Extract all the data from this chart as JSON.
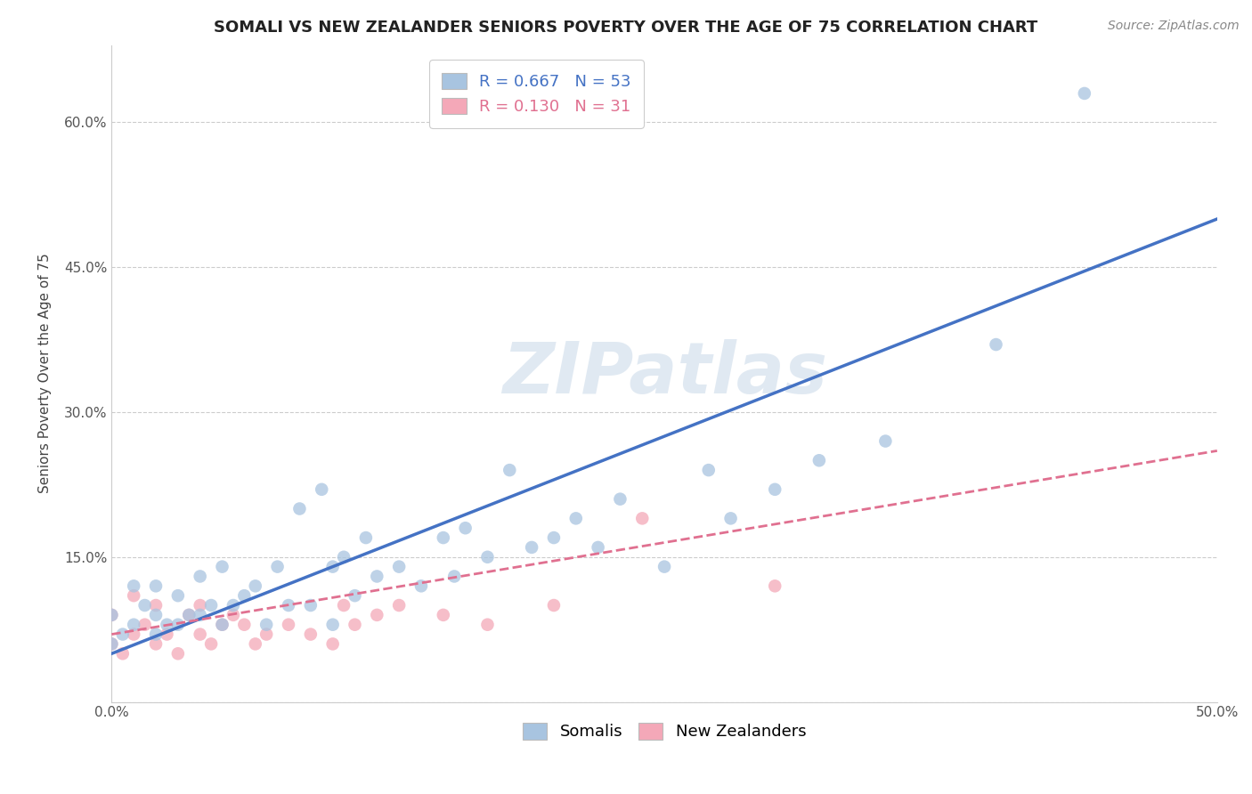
{
  "title": "SOMALI VS NEW ZEALANDER SENIORS POVERTY OVER THE AGE OF 75 CORRELATION CHART",
  "source": "Source: ZipAtlas.com",
  "ylabel": "Seniors Poverty Over the Age of 75",
  "xlim": [
    0.0,
    0.5
  ],
  "ylim": [
    0.0,
    0.68
  ],
  "yticks": [
    0.0,
    0.15,
    0.3,
    0.45,
    0.6
  ],
  "ytick_labels": [
    "",
    "15.0%",
    "30.0%",
    "45.0%",
    "60.0%"
  ],
  "xticks": [
    0.0,
    0.1,
    0.2,
    0.3,
    0.4,
    0.5
  ],
  "xtick_labels": [
    "0.0%",
    "",
    "",
    "",
    "",
    "50.0%"
  ],
  "somali_R": 0.667,
  "somali_N": 53,
  "nz_R": 0.13,
  "nz_N": 31,
  "somali_color": "#a8c4e0",
  "nz_color": "#f4a8b8",
  "somali_line_color": "#4472c4",
  "nz_line_color": "#e07090",
  "watermark": "ZIPatlas",
  "somali_scatter_x": [
    0.0,
    0.0,
    0.005,
    0.01,
    0.01,
    0.015,
    0.02,
    0.02,
    0.02,
    0.025,
    0.03,
    0.03,
    0.035,
    0.04,
    0.04,
    0.045,
    0.05,
    0.05,
    0.055,
    0.06,
    0.065,
    0.07,
    0.075,
    0.08,
    0.085,
    0.09,
    0.095,
    0.1,
    0.1,
    0.105,
    0.11,
    0.115,
    0.12,
    0.13,
    0.14,
    0.15,
    0.155,
    0.16,
    0.17,
    0.18,
    0.19,
    0.2,
    0.21,
    0.22,
    0.23,
    0.25,
    0.27,
    0.28,
    0.3,
    0.32,
    0.35,
    0.4,
    0.44
  ],
  "somali_scatter_y": [
    0.06,
    0.09,
    0.07,
    0.08,
    0.12,
    0.1,
    0.07,
    0.09,
    0.12,
    0.08,
    0.08,
    0.11,
    0.09,
    0.09,
    0.13,
    0.1,
    0.08,
    0.14,
    0.1,
    0.11,
    0.12,
    0.08,
    0.14,
    0.1,
    0.2,
    0.1,
    0.22,
    0.08,
    0.14,
    0.15,
    0.11,
    0.17,
    0.13,
    0.14,
    0.12,
    0.17,
    0.13,
    0.18,
    0.15,
    0.24,
    0.16,
    0.17,
    0.19,
    0.16,
    0.21,
    0.14,
    0.24,
    0.19,
    0.22,
    0.25,
    0.27,
    0.37,
    0.63
  ],
  "nz_scatter_x": [
    0.0,
    0.0,
    0.005,
    0.01,
    0.01,
    0.015,
    0.02,
    0.02,
    0.025,
    0.03,
    0.035,
    0.04,
    0.04,
    0.045,
    0.05,
    0.055,
    0.06,
    0.065,
    0.07,
    0.08,
    0.09,
    0.1,
    0.105,
    0.11,
    0.12,
    0.13,
    0.15,
    0.17,
    0.2,
    0.24,
    0.3
  ],
  "nz_scatter_y": [
    0.06,
    0.09,
    0.05,
    0.07,
    0.11,
    0.08,
    0.06,
    0.1,
    0.07,
    0.05,
    0.09,
    0.07,
    0.1,
    0.06,
    0.08,
    0.09,
    0.08,
    0.06,
    0.07,
    0.08,
    0.07,
    0.06,
    0.1,
    0.08,
    0.09,
    0.1,
    0.09,
    0.08,
    0.1,
    0.19,
    0.12
  ],
  "somali_line_x0": 0.0,
  "somali_line_y0": 0.05,
  "somali_line_x1": 0.5,
  "somali_line_y1": 0.5,
  "nz_line_x0": 0.0,
  "nz_line_y0": 0.07,
  "nz_line_x1": 0.5,
  "nz_line_y1": 0.26,
  "title_fontsize": 13,
  "axis_label_fontsize": 11,
  "tick_fontsize": 11,
  "legend_fontsize": 13,
  "source_fontsize": 10,
  "marker_size": 110
}
